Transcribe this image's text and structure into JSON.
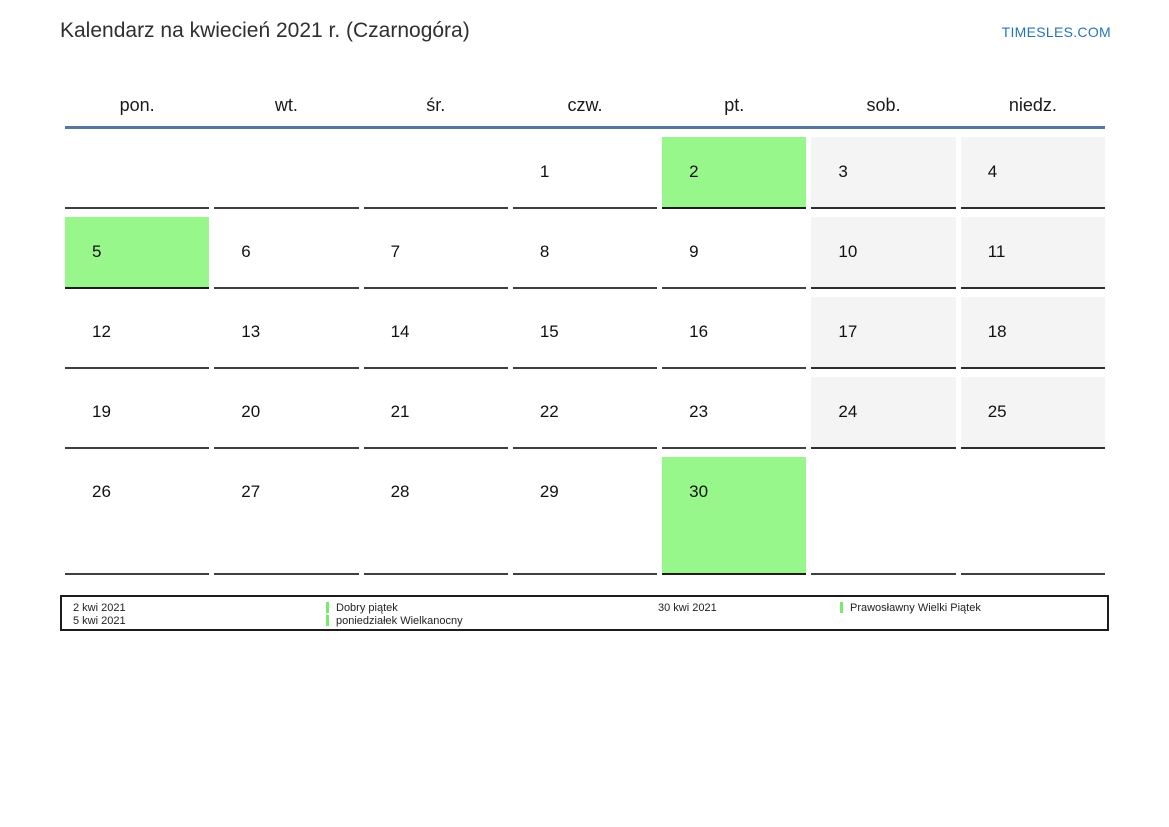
{
  "header": {
    "title": "Kalendarz na kwiecień 2021 r. (Czarnogóra)",
    "site_link": "TIMESLES.COM"
  },
  "colors": {
    "holiday_green": "#98f78a",
    "weekend_bg": "#f4f4f5",
    "header_line_blue": "#54779f",
    "cell_border": "#3f3f3f",
    "link_blue": "#2574ba",
    "legend_marker_green": "#76ed68"
  },
  "weekdays": [
    "pon.",
    "wt.",
    "śr.",
    "czw.",
    "pt.",
    "sob.",
    "niedz."
  ],
  "weeks": [
    [
      {
        "day": "",
        "type": "empty"
      },
      {
        "day": "",
        "type": "empty"
      },
      {
        "day": "",
        "type": "empty"
      },
      {
        "day": "1",
        "type": "workday"
      },
      {
        "day": "2",
        "type": "holiday"
      },
      {
        "day": "3",
        "type": "weekend"
      },
      {
        "day": "4",
        "type": "weekend"
      }
    ],
    [
      {
        "day": "5",
        "type": "holiday"
      },
      {
        "day": "6",
        "type": "workday"
      },
      {
        "day": "7",
        "type": "workday"
      },
      {
        "day": "8",
        "type": "workday"
      },
      {
        "day": "9",
        "type": "workday"
      },
      {
        "day": "10",
        "type": "weekend"
      },
      {
        "day": "11",
        "type": "weekend"
      }
    ],
    [
      {
        "day": "12",
        "type": "workday"
      },
      {
        "day": "13",
        "type": "workday"
      },
      {
        "day": "14",
        "type": "workday"
      },
      {
        "day": "15",
        "type": "workday"
      },
      {
        "day": "16",
        "type": "workday"
      },
      {
        "day": "17",
        "type": "weekend"
      },
      {
        "day": "18",
        "type": "weekend"
      }
    ],
    [
      {
        "day": "19",
        "type": "workday"
      },
      {
        "day": "20",
        "type": "workday"
      },
      {
        "day": "21",
        "type": "workday"
      },
      {
        "day": "22",
        "type": "workday"
      },
      {
        "day": "23",
        "type": "workday"
      },
      {
        "day": "24",
        "type": "weekend"
      },
      {
        "day": "25",
        "type": "weekend"
      }
    ],
    [
      {
        "day": "26",
        "type": "workday"
      },
      {
        "day": "27",
        "type": "workday"
      },
      {
        "day": "28",
        "type": "workday"
      },
      {
        "day": "29",
        "type": "workday"
      },
      {
        "day": "30",
        "type": "holiday"
      },
      {
        "day": "",
        "type": "empty"
      },
      {
        "day": "",
        "type": "empty"
      }
    ]
  ],
  "legend": {
    "groups": [
      {
        "dates": [
          "2 kwi 2021",
          "5 kwi 2021"
        ],
        "events": [
          "Dobry piątek",
          "poniedziałek Wielkanocny"
        ]
      },
      {
        "dates": [
          "30 kwi 2021"
        ],
        "events": [
          "Prawosławny Wielki Piątek"
        ]
      }
    ]
  }
}
